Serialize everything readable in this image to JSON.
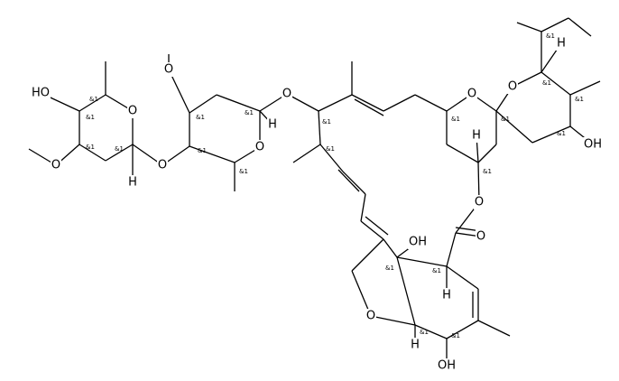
{
  "atom_labels": [
    "HO",
    "O",
    "O",
    "H",
    "O",
    "O",
    "O",
    "H",
    "O",
    "O",
    "O",
    "H",
    "OH",
    "H",
    "O",
    "O",
    "OH",
    "O",
    "H",
    "H",
    "OH"
  ],
  "stereo_labels": [
    "&1",
    "&1",
    "&1",
    "&1",
    "&1",
    "&1",
    "&1",
    "&1",
    "&1",
    "&1",
    "&1",
    "&1",
    "&1",
    "&1",
    "&1",
    "&1",
    "&1",
    "&1",
    "&1",
    "&1",
    "&1"
  ]
}
